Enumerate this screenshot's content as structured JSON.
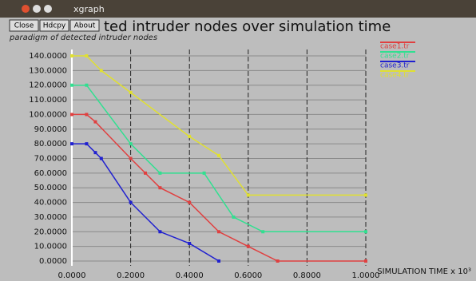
{
  "window": {
    "title": "xgraph",
    "buttons": [
      "Close",
      "Hdcpy",
      "About"
    ]
  },
  "chart_data": {
    "type": "line",
    "title": "ted intruder nodes over simulation time",
    "subtitle": "paradigm of detected intruder nodes",
    "x_label": "SIMULATION TIME x 10³",
    "xlim": [
      0,
      1
    ],
    "ylim": [
      0,
      140
    ],
    "xticks": [
      {
        "value": 0,
        "label": "0.0000"
      },
      {
        "value": 0.2,
        "label": "0.2000"
      },
      {
        "value": 0.4,
        "label": "0.4000"
      },
      {
        "value": 0.6,
        "label": "0.6000"
      },
      {
        "value": 0.8,
        "label": "0.8000"
      },
      {
        "value": 1,
        "label": "1.0000"
      }
    ],
    "yticks": [
      {
        "value": 0,
        "label": "0.0000"
      },
      {
        "value": 10,
        "label": "10.0000"
      },
      {
        "value": 20,
        "label": "20.0000"
      },
      {
        "value": 30,
        "label": "30.0000"
      },
      {
        "value": 40,
        "label": "40.0000"
      },
      {
        "value": 50,
        "label": "50.0000"
      },
      {
        "value": 60,
        "label": "60.0000"
      },
      {
        "value": 70,
        "label": "70.0000"
      },
      {
        "value": 80,
        "label": "80.0000"
      },
      {
        "value": 90,
        "label": "90.0000"
      },
      {
        "value": 100,
        "label": "100.0000"
      },
      {
        "value": 110,
        "label": "110.0000"
      },
      {
        "value": 120,
        "label": "120.0000"
      },
      {
        "value": 130,
        "label": "130.0000"
      },
      {
        "value": 140,
        "label": "140.0000"
      }
    ],
    "grid": true,
    "series": [
      {
        "name": "case1.tr",
        "color": "#e04040",
        "x": [
          0,
          0.05,
          0.08,
          0.2,
          0.25,
          0.3,
          0.4,
          0.5,
          0.6,
          0.7,
          1.0
        ],
        "values": [
          100,
          100,
          95,
          70,
          60,
          50,
          40,
          20,
          10,
          0,
          0
        ]
      },
      {
        "name": "case2.tr",
        "color": "#30e090",
        "x": [
          0,
          0.05,
          0.2,
          0.3,
          0.45,
          0.55,
          0.65,
          1.0
        ],
        "values": [
          120,
          120,
          80,
          60,
          60,
          30,
          20,
          20
        ]
      },
      {
        "name": "case3.tr",
        "color": "#2020d0",
        "x": [
          0,
          0.05,
          0.08,
          0.1,
          0.2,
          0.3,
          0.4,
          0.5
        ],
        "values": [
          80,
          80,
          74,
          70,
          40,
          20,
          12,
          0
        ]
      },
      {
        "name": "case4.tr",
        "color": "#e0e030",
        "x": [
          0,
          0.05,
          0.1,
          0.2,
          0.4,
          0.5,
          0.6,
          1.0
        ],
        "values": [
          140,
          140,
          130,
          115,
          85,
          72,
          45,
          45
        ]
      }
    ]
  }
}
